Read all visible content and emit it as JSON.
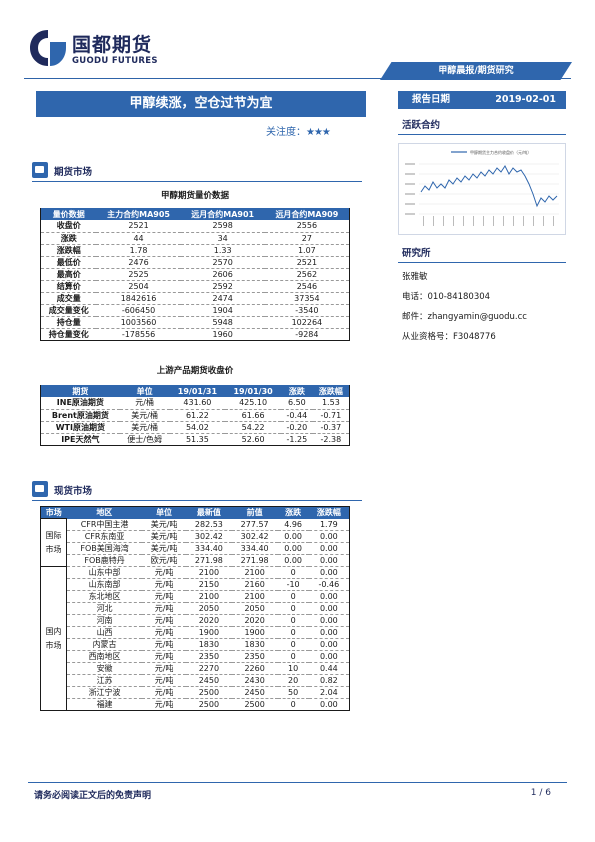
{
  "header": {
    "logo_name": "国都期货",
    "logo_sub": "GUODU FUTURES",
    "report_type": "甲醇晨报/期货研究"
  },
  "title": "甲醇续涨，空仓过节为宜",
  "focus": {
    "label": "关注度：",
    "stars": "★★★"
  },
  "report_date": {
    "label": "报告日期",
    "value": "2019-02-01"
  },
  "sidebar": {
    "active_contract_title": "活跃合约",
    "institute_title": "研究所",
    "analyst": "张雅敏",
    "phone": "电话：010-84180304",
    "email": "邮件：zhangyamin@guodu.cc",
    "license": "从业资格号：F3048776"
  },
  "side_chart": {
    "type": "line",
    "legend": "甲醇期货主力合约收盘价（元/吨）",
    "color": "#2f66ad"
  },
  "futures_section": {
    "title": "期货市场"
  },
  "futures_table": {
    "title": "甲醇期货量价数据",
    "headers": [
      "量价数据",
      "主力合约MA905",
      "远月合约MA901",
      "远月合约MA909"
    ],
    "rows": [
      [
        "收盘价",
        "2521",
        "2598",
        "2556"
      ],
      [
        "涨跌",
        "44",
        "34",
        "27"
      ],
      [
        "涨跌幅",
        "1.78",
        "1.33",
        "1.07"
      ],
      [
        "最低价",
        "2476",
        "2570",
        "2521"
      ],
      [
        "最高价",
        "2525",
        "2606",
        "2562"
      ],
      [
        "结算价",
        "2504",
        "2592",
        "2546"
      ],
      [
        "成交量",
        "1842616",
        "2474",
        "37354"
      ],
      [
        "成交量变化",
        "-606450",
        "1904",
        "-3540"
      ],
      [
        "持仓量",
        "1003560",
        "5948",
        "102264"
      ],
      [
        "持仓量变化",
        "-178556",
        "1960",
        "-9284"
      ]
    ]
  },
  "upstream_table": {
    "title": "上游产品期货收盘价",
    "headers": [
      "期货",
      "单位",
      "19/01/31",
      "19/01/30",
      "涨跌",
      "涨跌幅"
    ],
    "rows": [
      [
        "INE原油期货",
        "元/桶",
        "431.60",
        "425.10",
        "6.50",
        "1.53"
      ],
      [
        "Brent原油期货",
        "美元/桶",
        "61.22",
        "61.66",
        "-0.44",
        "-0.71"
      ],
      [
        "WTI原油期货",
        "美元/桶",
        "54.02",
        "54.22",
        "-0.20",
        "-0.37"
      ],
      [
        "IPE天然气",
        "便士/色姆",
        "51.35",
        "52.60",
        "-1.25",
        "-2.38"
      ]
    ]
  },
  "spot_section": {
    "title": "现货市场"
  },
  "spot_table": {
    "headers": [
      "市场",
      "地区",
      "单位",
      "最新值",
      "前值",
      "涨跌",
      "涨跌幅"
    ],
    "groups": [
      {
        "name": "国际市场",
        "rows": [
          [
            "CFR中国主港",
            "美元/吨",
            "282.53",
            "277.57",
            "4.96",
            "1.79"
          ],
          [
            "CFR东南亚",
            "美元/吨",
            "302.42",
            "302.42",
            "0.00",
            "0.00"
          ],
          [
            "FOB美国海湾",
            "美元/吨",
            "334.40",
            "334.40",
            "0.00",
            "0.00"
          ],
          [
            "FOB鹿特丹",
            "欧元/吨",
            "271.98",
            "271.98",
            "0.00",
            "0.00"
          ]
        ]
      },
      {
        "name": "国内市场",
        "rows": [
          [
            "山东中部",
            "元/吨",
            "2100",
            "2100",
            "0",
            "0.00"
          ],
          [
            "山东南部",
            "元/吨",
            "2150",
            "2160",
            "-10",
            "-0.46"
          ],
          [
            "东北地区",
            "元/吨",
            "2100",
            "2100",
            "0",
            "0.00"
          ],
          [
            "河北",
            "元/吨",
            "2050",
            "2050",
            "0",
            "0.00"
          ],
          [
            "河南",
            "元/吨",
            "2020",
            "2020",
            "0",
            "0.00"
          ],
          [
            "山西",
            "元/吨",
            "1900",
            "1900",
            "0",
            "0.00"
          ],
          [
            "内蒙古",
            "元/吨",
            "1830",
            "1830",
            "0",
            "0.00"
          ],
          [
            "西南地区",
            "元/吨",
            "2350",
            "2350",
            "0",
            "0.00"
          ],
          [
            "安徽",
            "元/吨",
            "2270",
            "2260",
            "10",
            "0.44"
          ],
          [
            "江苏",
            "元/吨",
            "2450",
            "2430",
            "20",
            "0.82"
          ],
          [
            "浙江宁波",
            "元/吨",
            "2500",
            "2450",
            "50",
            "2.04"
          ],
          [
            "福建",
            "元/吨",
            "2500",
            "2500",
            "0",
            "0.00"
          ]
        ]
      }
    ]
  },
  "footer": {
    "disclaimer": "请务必阅读正文后的免责声明",
    "page": "1 / 6"
  }
}
